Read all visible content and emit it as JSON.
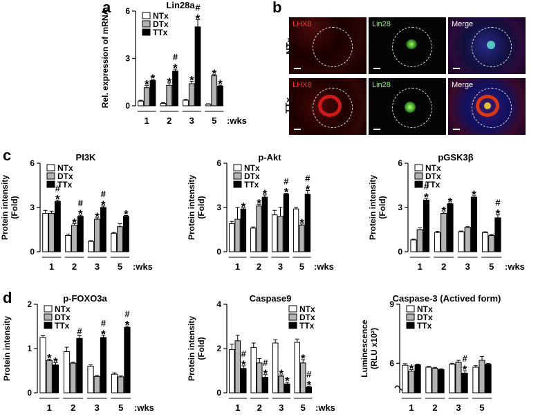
{
  "panel_labels": {
    "a": "a",
    "b": "b",
    "c": "c",
    "d": "d"
  },
  "colors": {
    "NTx": "#ffffff",
    "DTx": "#b4b4b4",
    "TTx": "#000000"
  },
  "microscopy": {
    "columns": [
      "LHX8",
      "Lin28",
      "Merge"
    ],
    "rows": [
      "NTx",
      "TTx"
    ],
    "caption_colors": {
      "LHX8": "#ff3030",
      "Lin28": "#7cff60",
      "Merge": "#ffffff"
    }
  },
  "chart_data": [
    {
      "type": "bar",
      "panel": "a",
      "title": "Lin28a",
      "ylabel": "Rel. expression of mRNA",
      "ylim": [
        0,
        6
      ],
      "yticks": [
        0,
        3,
        6
      ],
      "categories": [
        "1",
        "2",
        "3",
        "5"
      ],
      "x_suffix": ":wks",
      "legend": [
        "NTx",
        "DTx",
        "TTx"
      ],
      "legend_position": "top-left",
      "series": [
        {
          "name": "NTx",
          "values": [
            0.3,
            0.15,
            0.35,
            0.1
          ],
          "errors": [
            0.05,
            0.05,
            0.05,
            0.03
          ],
          "marks": [
            "",
            "",
            "",
            ""
          ]
        },
        {
          "name": "DTx",
          "values": [
            1.15,
            1.3,
            1.4,
            1.9
          ],
          "errors": [
            0.15,
            0.15,
            0.15,
            0.08
          ],
          "marks": [
            "*",
            "*",
            "*",
            "*"
          ]
        },
        {
          "name": "TTx",
          "values": [
            1.6,
            2.2,
            5.0,
            1.25
          ],
          "errors": [
            0.06,
            0.12,
            0.45,
            0.06
          ],
          "marks": [
            "*",
            "#*",
            "#*",
            "*"
          ]
        }
      ]
    },
    {
      "type": "bar",
      "panel": "c1",
      "title": "PI3K",
      "ylabel": "Protein intensity (Fold)",
      "ylim": [
        0,
        6
      ],
      "yticks": [
        0,
        3,
        6
      ],
      "categories": [
        "1",
        "2",
        "3",
        "5"
      ],
      "x_suffix": ":wks",
      "legend": [
        "NTx",
        "DTx",
        "TTx"
      ],
      "legend_position": "top-left",
      "series": [
        {
          "name": "NTx",
          "values": [
            2.6,
            1.1,
            0.7,
            1.25
          ],
          "errors": [
            0.2,
            0.1,
            0.05,
            0.05
          ],
          "marks": [
            "",
            "",
            "",
            ""
          ]
        },
        {
          "name": "DTx",
          "values": [
            2.6,
            1.8,
            2.2,
            1.7
          ],
          "errors": [
            0.15,
            0.1,
            0.1,
            0.2
          ],
          "marks": [
            "",
            "*",
            "*",
            ""
          ]
        },
        {
          "name": "TTx",
          "values": [
            3.4,
            2.4,
            3.0,
            2.4
          ],
          "errors": [
            0.1,
            0.08,
            0.1,
            0.06
          ],
          "marks": [
            "#*",
            "#*",
            "#*",
            "*"
          ]
        }
      ]
    },
    {
      "type": "bar",
      "panel": "c2",
      "title": "p-Akt",
      "ylabel": "Protein intensity (Fold)",
      "ylim": [
        0,
        6
      ],
      "yticks": [
        0,
        3,
        6
      ],
      "categories": [
        "1",
        "2",
        "3",
        "5"
      ],
      "x_suffix": ":wks",
      "legend": [
        "NTx",
        "DTx",
        "TTx"
      ],
      "legend_position": "top-left",
      "series": [
        {
          "name": "NTx",
          "values": [
            1.9,
            1.6,
            2.5,
            2.9
          ],
          "errors": [
            0.15,
            0.08,
            0.3,
            0.1
          ],
          "marks": [
            "",
            "",
            "",
            ""
          ]
        },
        {
          "name": "DTx",
          "values": [
            2.2,
            3.1,
            2.4,
            1.8
          ],
          "errors": [
            0.8,
            0.12,
            0.6,
            0.08
          ],
          "marks": [
            "",
            "*",
            "",
            "*"
          ]
        },
        {
          "name": "TTx",
          "values": [
            2.9,
            3.7,
            3.9,
            3.9
          ],
          "errors": [
            0.08,
            0.15,
            0.05,
            0.25
          ],
          "marks": [
            "*",
            "*",
            "#*",
            "#*"
          ]
        }
      ]
    },
    {
      "type": "bar",
      "panel": "c3",
      "title": "pGSK3β",
      "ylabel": "Protein intensity (Fold)",
      "ylim": [
        0,
        6
      ],
      "yticks": [
        0,
        3,
        6
      ],
      "categories": [
        "1",
        "2",
        "3",
        "5"
      ],
      "x_suffix": ":wks",
      "legend": [
        "NTx",
        "DTx",
        "TTx"
      ],
      "legend_position": "top-left",
      "series": [
        {
          "name": "NTx",
          "values": [
            0.8,
            1.3,
            1.35,
            1.3
          ],
          "errors": [
            0.05,
            0.08,
            0.05,
            0.05
          ],
          "marks": [
            "",
            "",
            "",
            ""
          ]
        },
        {
          "name": "DTx",
          "values": [
            1.5,
            2.6,
            1.65,
            1.1
          ],
          "errors": [
            0.12,
            0.1,
            0.05,
            0.05
          ],
          "marks": [
            "",
            "*",
            "",
            ""
          ]
        },
        {
          "name": "TTx",
          "values": [
            3.5,
            3.25,
            3.7,
            2.3
          ],
          "errors": [
            0.1,
            0.05,
            0.1,
            0.2
          ],
          "marks": [
            "#*",
            "*",
            "*",
            "#*"
          ]
        }
      ]
    },
    {
      "type": "bar",
      "panel": "d1",
      "title": "p-FOXO3a",
      "ylabel": "Protein intensity",
      "ylim": [
        0,
        2
      ],
      "yticks": [
        0,
        1,
        2
      ],
      "categories": [
        "1",
        "2",
        "3",
        "5"
      ],
      "x_suffix": ":wks",
      "legend": [
        "NTx",
        "DTx",
        "TTx"
      ],
      "legend_position": "top-left",
      "series": [
        {
          "name": "NTx",
          "values": [
            1.25,
            0.93,
            0.6,
            0.42
          ],
          "errors": [
            0.04,
            0.1,
            0.03,
            0.03
          ],
          "marks": [
            "",
            "",
            "",
            ""
          ]
        },
        {
          "name": "DTx",
          "values": [
            0.73,
            0.67,
            0.37,
            0.36
          ],
          "errors": [
            0.03,
            0.02,
            0.02,
            0.02
          ],
          "marks": [
            "*",
            "",
            "",
            ""
          ]
        },
        {
          "name": "TTx",
          "values": [
            0.63,
            1.23,
            1.25,
            1.48
          ],
          "errors": [
            0.05,
            0.06,
            0.05,
            0.03
          ],
          "marks": [
            "*",
            "#",
            "#*",
            "#*"
          ]
        }
      ]
    },
    {
      "type": "bar",
      "panel": "d2",
      "title": "Caspase9",
      "ylabel": "Protein intensity (Fold)",
      "ylim": [
        0,
        4
      ],
      "yticks": [
        0,
        2,
        4
      ],
      "categories": [
        "1",
        "2",
        "3",
        "5"
      ],
      "x_suffix": ":wks",
      "legend": [
        "NTx",
        "DTx",
        "TTx"
      ],
      "legend_position": "top-right",
      "series": [
        {
          "name": "NTx",
          "values": [
            1.95,
            2.05,
            2.25,
            2.28
          ],
          "errors": [
            0.25,
            0.2,
            0.15,
            0.15
          ],
          "marks": [
            "",
            "",
            "",
            ""
          ]
        },
        {
          "name": "DTx",
          "values": [
            2.35,
            1.35,
            0.75,
            1.35
          ],
          "errors": [
            0.25,
            0.2,
            0.06,
            0.15
          ],
          "marks": [
            "",
            "",
            "*",
            "*"
          ]
        },
        {
          "name": "TTx",
          "values": [
            1.1,
            0.7,
            0.4,
            0.25
          ],
          "errors": [
            0.12,
            0.12,
            0.08,
            0.05
          ],
          "marks": [
            "#*",
            "#*",
            "*",
            "#*"
          ]
        }
      ]
    },
    {
      "type": "bar",
      "panel": "d3",
      "title": "Caspase-3 (Actived form)",
      "ylabel": "Luminescence (RLU x10²)",
      "ylim": [
        4.5,
        9
      ],
      "yticks": [
        6,
        9
      ],
      "axis_break": true,
      "categories": [
        "1",
        "2",
        "3",
        "5"
      ],
      "x_suffix": "",
      "legend": [
        "NTx",
        "DTx",
        "TTx"
      ],
      "legend_position": "top-left",
      "series": [
        {
          "name": "NTx",
          "values": [
            5.9,
            5.8,
            5.95,
            5.8
          ],
          "errors": [
            0.08,
            0.04,
            0.05,
            0.08
          ],
          "marks": [
            "",
            "",
            "",
            ""
          ]
        },
        {
          "name": "DTx",
          "values": [
            5.6,
            5.75,
            6.05,
            6.15
          ],
          "errors": [
            0.08,
            0.04,
            0.1,
            0.2
          ],
          "marks": [
            "*",
            "",
            "",
            ""
          ]
        },
        {
          "name": "TTx",
          "values": [
            5.92,
            5.68,
            5.5,
            5.95
          ],
          "errors": [
            0.04,
            0.04,
            0.12,
            0.04
          ],
          "marks": [
            "",
            "",
            "#*",
            ""
          ]
        }
      ]
    }
  ]
}
